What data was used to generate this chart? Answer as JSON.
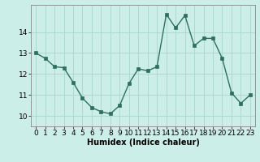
{
  "x": [
    0,
    1,
    2,
    3,
    4,
    5,
    6,
    7,
    8,
    9,
    10,
    11,
    12,
    13,
    14,
    15,
    16,
    17,
    18,
    19,
    20,
    21,
    22,
    23
  ],
  "y": [
    13.0,
    12.75,
    12.35,
    12.3,
    11.6,
    10.85,
    10.4,
    10.2,
    10.1,
    10.5,
    11.55,
    12.25,
    12.15,
    12.35,
    14.85,
    14.2,
    14.8,
    13.35,
    13.7,
    13.7,
    12.75,
    11.1,
    10.6,
    11.0
  ],
  "line_color": "#2e7060",
  "bg_color": "#cceee8",
  "grid_color": "#aad4cc",
  "xlabel": "Humidex (Indice chaleur)",
  "ylim": [
    9.5,
    15.3
  ],
  "xlim": [
    -0.5,
    23.5
  ],
  "yticks": [
    10,
    11,
    12,
    13,
    14
  ],
  "xticks": [
    0,
    1,
    2,
    3,
    4,
    5,
    6,
    7,
    8,
    9,
    10,
    11,
    12,
    13,
    14,
    15,
    16,
    17,
    18,
    19,
    20,
    21,
    22,
    23
  ],
  "marker_size": 2.5,
  "line_width": 1.0,
  "tick_font_size": 6.5,
  "xlabel_font_size": 7.0
}
